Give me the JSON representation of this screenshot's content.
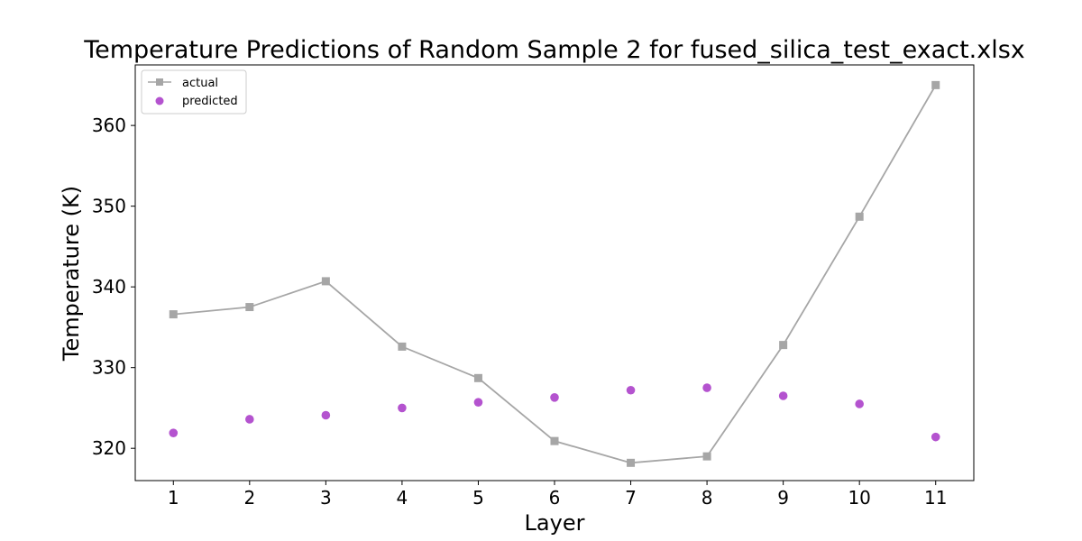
{
  "chart_data": {
    "type": "line",
    "title": "Temperature Predictions of Random Sample 2 for fused_silica_test_exact.xlsx",
    "xlabel": "Layer",
    "ylabel": "Temperature (K)",
    "x": [
      1,
      2,
      3,
      4,
      5,
      6,
      7,
      8,
      9,
      10,
      11
    ],
    "xlim": [
      0.5,
      11.5
    ],
    "ylim": [
      316,
      367.5
    ],
    "yticks": [
      320,
      330,
      340,
      350,
      360
    ],
    "grid": false,
    "legend_position": "top-left",
    "series": [
      {
        "name": "actual",
        "style": "line-with-square-markers",
        "color": "#a6a6a6",
        "values": [
          336.6,
          337.5,
          340.7,
          332.6,
          328.7,
          320.9,
          318.2,
          319.0,
          332.8,
          348.7,
          365.0
        ]
      },
      {
        "name": "predicted",
        "style": "scatter-circle",
        "color": "#b453cf",
        "values": [
          321.9,
          323.6,
          324.1,
          325.0,
          325.7,
          326.3,
          327.2,
          327.5,
          326.5,
          325.5,
          321.4
        ]
      }
    ]
  }
}
